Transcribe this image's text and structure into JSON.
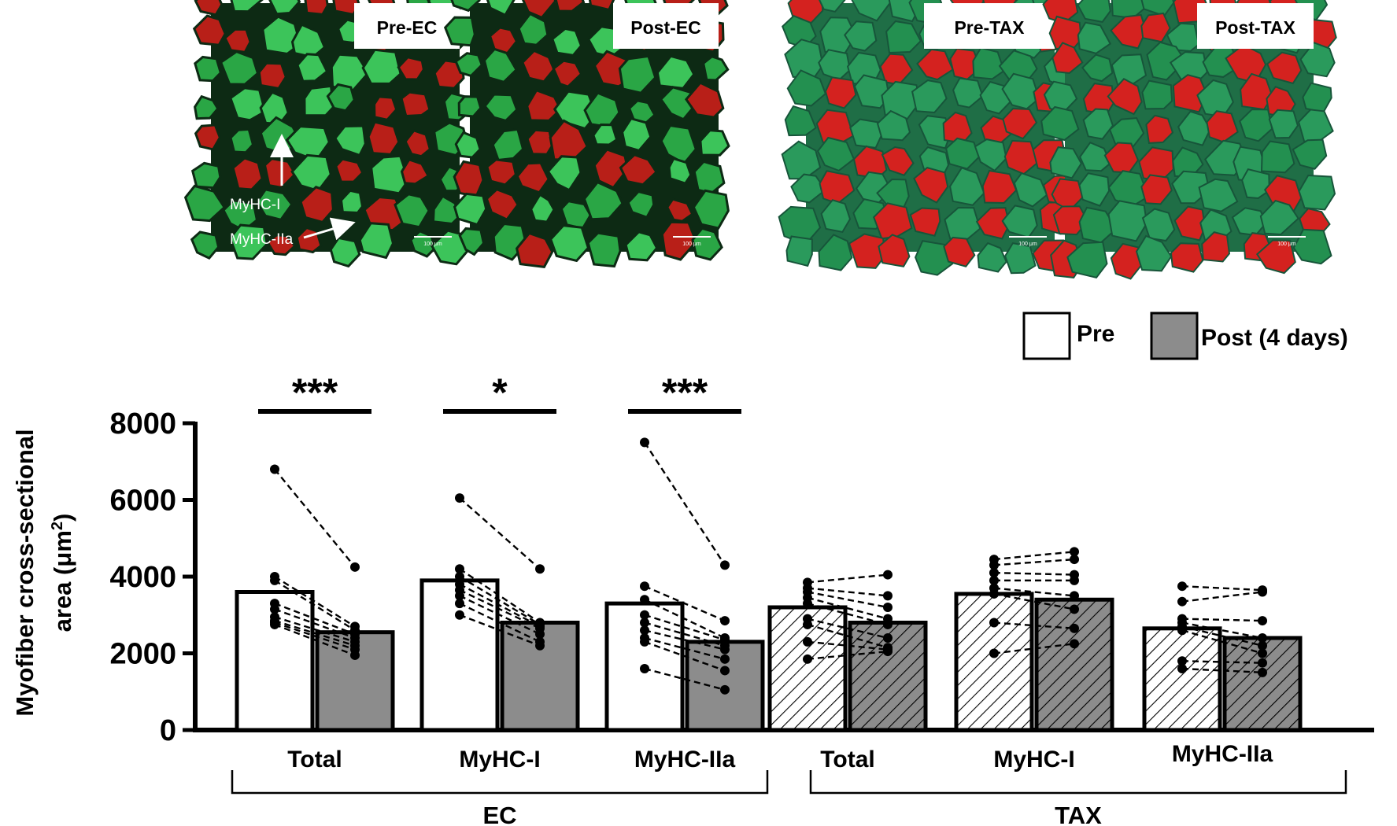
{
  "micrographs": {
    "panels": [
      {
        "label": "Pre-EC",
        "scale_text": "100 μm",
        "style": "ec-pre"
      },
      {
        "label": "Post-EC",
        "scale_text": "100 μm",
        "style": "ec-post"
      },
      {
        "label": "Pre-TAX",
        "scale_text": "100 μm",
        "style": "tax"
      },
      {
        "label": "Post-TAX",
        "scale_text": "100 μm",
        "style": "tax"
      }
    ],
    "annotations": {
      "myhc_i": "MyHC-I",
      "myhc_iia": "MyHC-IIa"
    }
  },
  "legend": {
    "pre": "Pre",
    "post": "Post (4 days)"
  },
  "colors": {
    "pre_fill": "#ffffff",
    "post_fill": "#8c8c8c",
    "tax_pre_hatch": "#ffffff",
    "tax_post_hatch": "#8c8c8c",
    "red": "#d0231c",
    "green": "#2fb84a"
  },
  "chart_data": {
    "type": "bar",
    "ylabel_line1": "Myofiber cross-sectional",
    "ylabel_line2_prefix": "area (",
    "ylabel_unit": "μm",
    "ylabel_sup": "2",
    "ylabel_line2_suffix": ")",
    "ylim": [
      0,
      8000
    ],
    "yticks": [
      "0",
      "2000",
      "4000",
      "6000",
      "8000"
    ],
    "groups": [
      {
        "name": "EC",
        "categories": [
          "Total",
          "MyHC-I",
          "MyHC-IIa"
        ]
      },
      {
        "name": "TAX",
        "categories": [
          "Total",
          "MyHC-I",
          "MyHC-IIa"
        ]
      }
    ],
    "series": [
      {
        "name": "Pre",
        "values": [
          3600,
          3900,
          3300,
          3200,
          3550,
          2650
        ]
      },
      {
        "name": "Post (4 days)",
        "values": [
          2550,
          2800,
          2300,
          2800,
          3400,
          2400
        ]
      }
    ],
    "hatched_group": "TAX",
    "significance": [
      "***",
      "*",
      "***",
      "",
      "",
      ""
    ],
    "paired_points": [
      {
        "pre": [
          6800,
          4000,
          3900,
          3300,
          3150,
          2950,
          2850,
          2800,
          2750
        ],
        "post": [
          4250,
          2700,
          2600,
          2500,
          2400,
          2300,
          2200,
          2100,
          1950
        ]
      },
      {
        "pre": [
          6050,
          4200,
          4000,
          3800,
          3650,
          3500,
          3300,
          3000
        ],
        "post": [
          4200,
          2800,
          2750,
          2700,
          2650,
          2500,
          2300,
          2200
        ]
      },
      {
        "pre": [
          7500,
          3750,
          3400,
          3000,
          2800,
          2600,
          2400,
          2300,
          1600
        ],
        "post": [
          4300,
          2850,
          2400,
          2350,
          2200,
          2100,
          1850,
          1550,
          1050
        ]
      },
      {
        "pre": [
          3850,
          3700,
          3600,
          3450,
          3300,
          2900,
          2750,
          2300,
          1850
        ],
        "post": [
          4050,
          3500,
          3200,
          2900,
          2750,
          2400,
          2150,
          2100,
          2050
        ]
      },
      {
        "pre": [
          4450,
          4300,
          4100,
          3900,
          3700,
          3550,
          2800,
          2000
        ],
        "post": [
          4650,
          4450,
          4050,
          3900,
          3500,
          3150,
          2650,
          2250
        ]
      },
      {
        "pre": [
          3750,
          3350,
          2900,
          2800,
          2700,
          2600,
          1800,
          1600
        ],
        "post": [
          3650,
          3600,
          2850,
          2400,
          2200,
          2000,
          1750,
          1500
        ]
      }
    ]
  }
}
